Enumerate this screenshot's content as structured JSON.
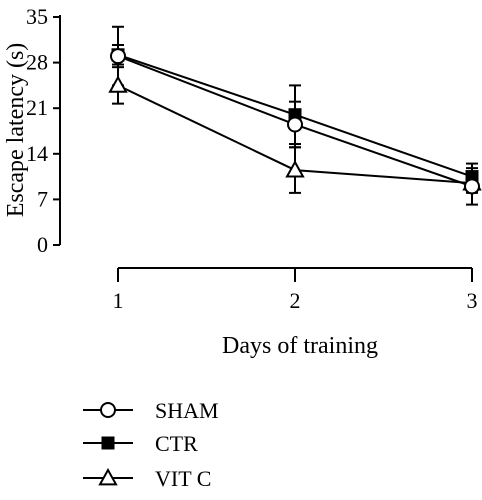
{
  "chart_data": {
    "type": "line",
    "xlabel": "Days of training",
    "ylabel": "Escape latency (s)",
    "x": [
      1,
      2,
      3
    ],
    "x_tick_labels": [
      "1",
      "2",
      "3"
    ],
    "y_tick_labels": [
      "0",
      "7",
      "14",
      "21",
      "28",
      "35"
    ],
    "ylim": [
      0,
      35
    ],
    "xlim": [
      1,
      3
    ],
    "grid": false,
    "legend_position": "bottom-left",
    "series": [
      {
        "name": "SHAM",
        "marker": "circle-open",
        "values": [
          29.0,
          18.5,
          9.0
        ],
        "errors": [
          4.5,
          3.5,
          2.8
        ]
      },
      {
        "name": "CTR",
        "marker": "square-filled",
        "values": [
          29.2,
          20.0,
          10.5
        ],
        "errors": [
          1.5,
          4.5,
          2.0
        ]
      },
      {
        "name": "VIT C",
        "marker": "triangle-open",
        "values": [
          24.5,
          11.5,
          9.5
        ],
        "errors": [
          2.8,
          3.5,
          1.5
        ]
      }
    ]
  }
}
